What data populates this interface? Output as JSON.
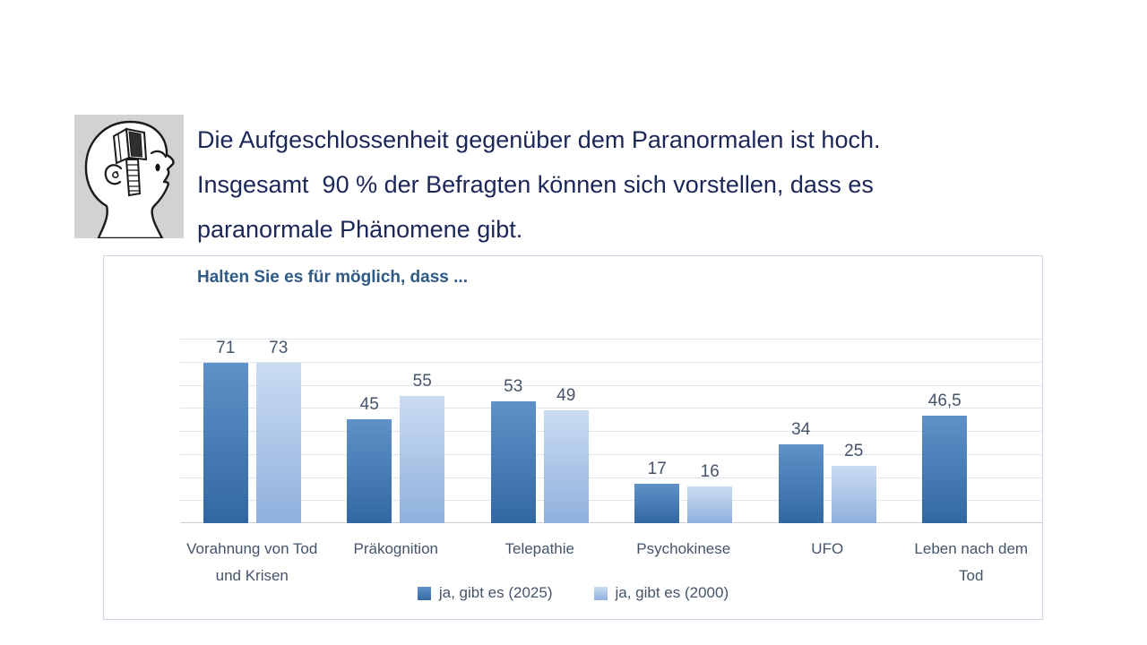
{
  "header": {
    "lines": [
      "Die Aufgeschlossenheit gegenüber dem Paranormalen ist hoch.",
      "Insgesamt  90 % der Befragten können sich vorstellen, dass es",
      "paranormale Phänomene gibt."
    ],
    "text_color": "#1b2659",
    "logo": {
      "icon": "open-head-profile-icon",
      "background": "#d2d2d2"
    }
  },
  "chart_data": {
    "type": "bar",
    "title": "Halten Sie es für möglich, dass ...",
    "title_color": "#2d5a87",
    "categories": [
      "Vorahnung von Tod und Krisen",
      "Präkognition",
      "Telepathie",
      "Psychokinese",
      "UFO",
      "Leben nach dem Tod"
    ],
    "series": [
      {
        "name": "ja, gibt es (2025)",
        "values": [
          71,
          45,
          53,
          17,
          34,
          46.5
        ],
        "labels": [
          "71",
          "45",
          "53",
          "17",
          "34",
          "46,5"
        ],
        "color_top": "#6091c8",
        "color_bottom": "#3268a2"
      },
      {
        "name": "ja, gibt es (2000)",
        "values": [
          73,
          55,
          49,
          16,
          25,
          null
        ],
        "labels": [
          "73",
          "55",
          "49",
          "16",
          "25",
          ""
        ],
        "color_top": "#cadcf2",
        "color_bottom": "#8fb0dd"
      }
    ],
    "ylim": [
      0,
      80
    ],
    "gridline_interval": 10,
    "grid": true,
    "y_axis_labels": false,
    "value_labels": true,
    "legend_position": "bottom",
    "label_color": "#44546a",
    "gridline_color": "#dfe5ec",
    "axis_color": "#c9cfd6",
    "frame_color": "#c7d7e7"
  }
}
